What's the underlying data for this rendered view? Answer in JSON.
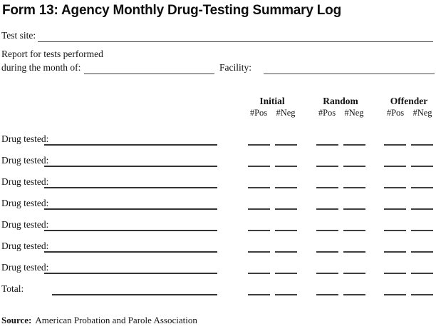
{
  "page": {
    "title": "Form 13: Agency Monthly Drug-Testing Summary Log"
  },
  "fields": {
    "test_site_label": "Test site:",
    "report_line1": "Report for tests performed",
    "report_line2": "during the month of:",
    "facility_label": "Facility:"
  },
  "table": {
    "columns": [
      {
        "label": "Initial",
        "pos": "#Pos",
        "neg": "#Neg"
      },
      {
        "label": "Random",
        "pos": "#Pos",
        "neg": "#Neg"
      },
      {
        "label": "Offender",
        "pos": "#Pos",
        "neg": "#Neg"
      }
    ],
    "rows": [
      {
        "label": "Drug tested:"
      },
      {
        "label": "Drug tested:"
      },
      {
        "label": "Drug tested:"
      },
      {
        "label": "Drug tested:"
      },
      {
        "label": "Drug tested:"
      },
      {
        "label": "Drug tested:"
      },
      {
        "label": "Drug tested:"
      },
      {
        "label": "Total:"
      }
    ]
  },
  "footer": {
    "source_label": "Source:",
    "source_text": "American Probation and Parole Association"
  },
  "colors": {
    "background": "#ffffff",
    "text": "#141414",
    "line": "#3c3c3c"
  }
}
